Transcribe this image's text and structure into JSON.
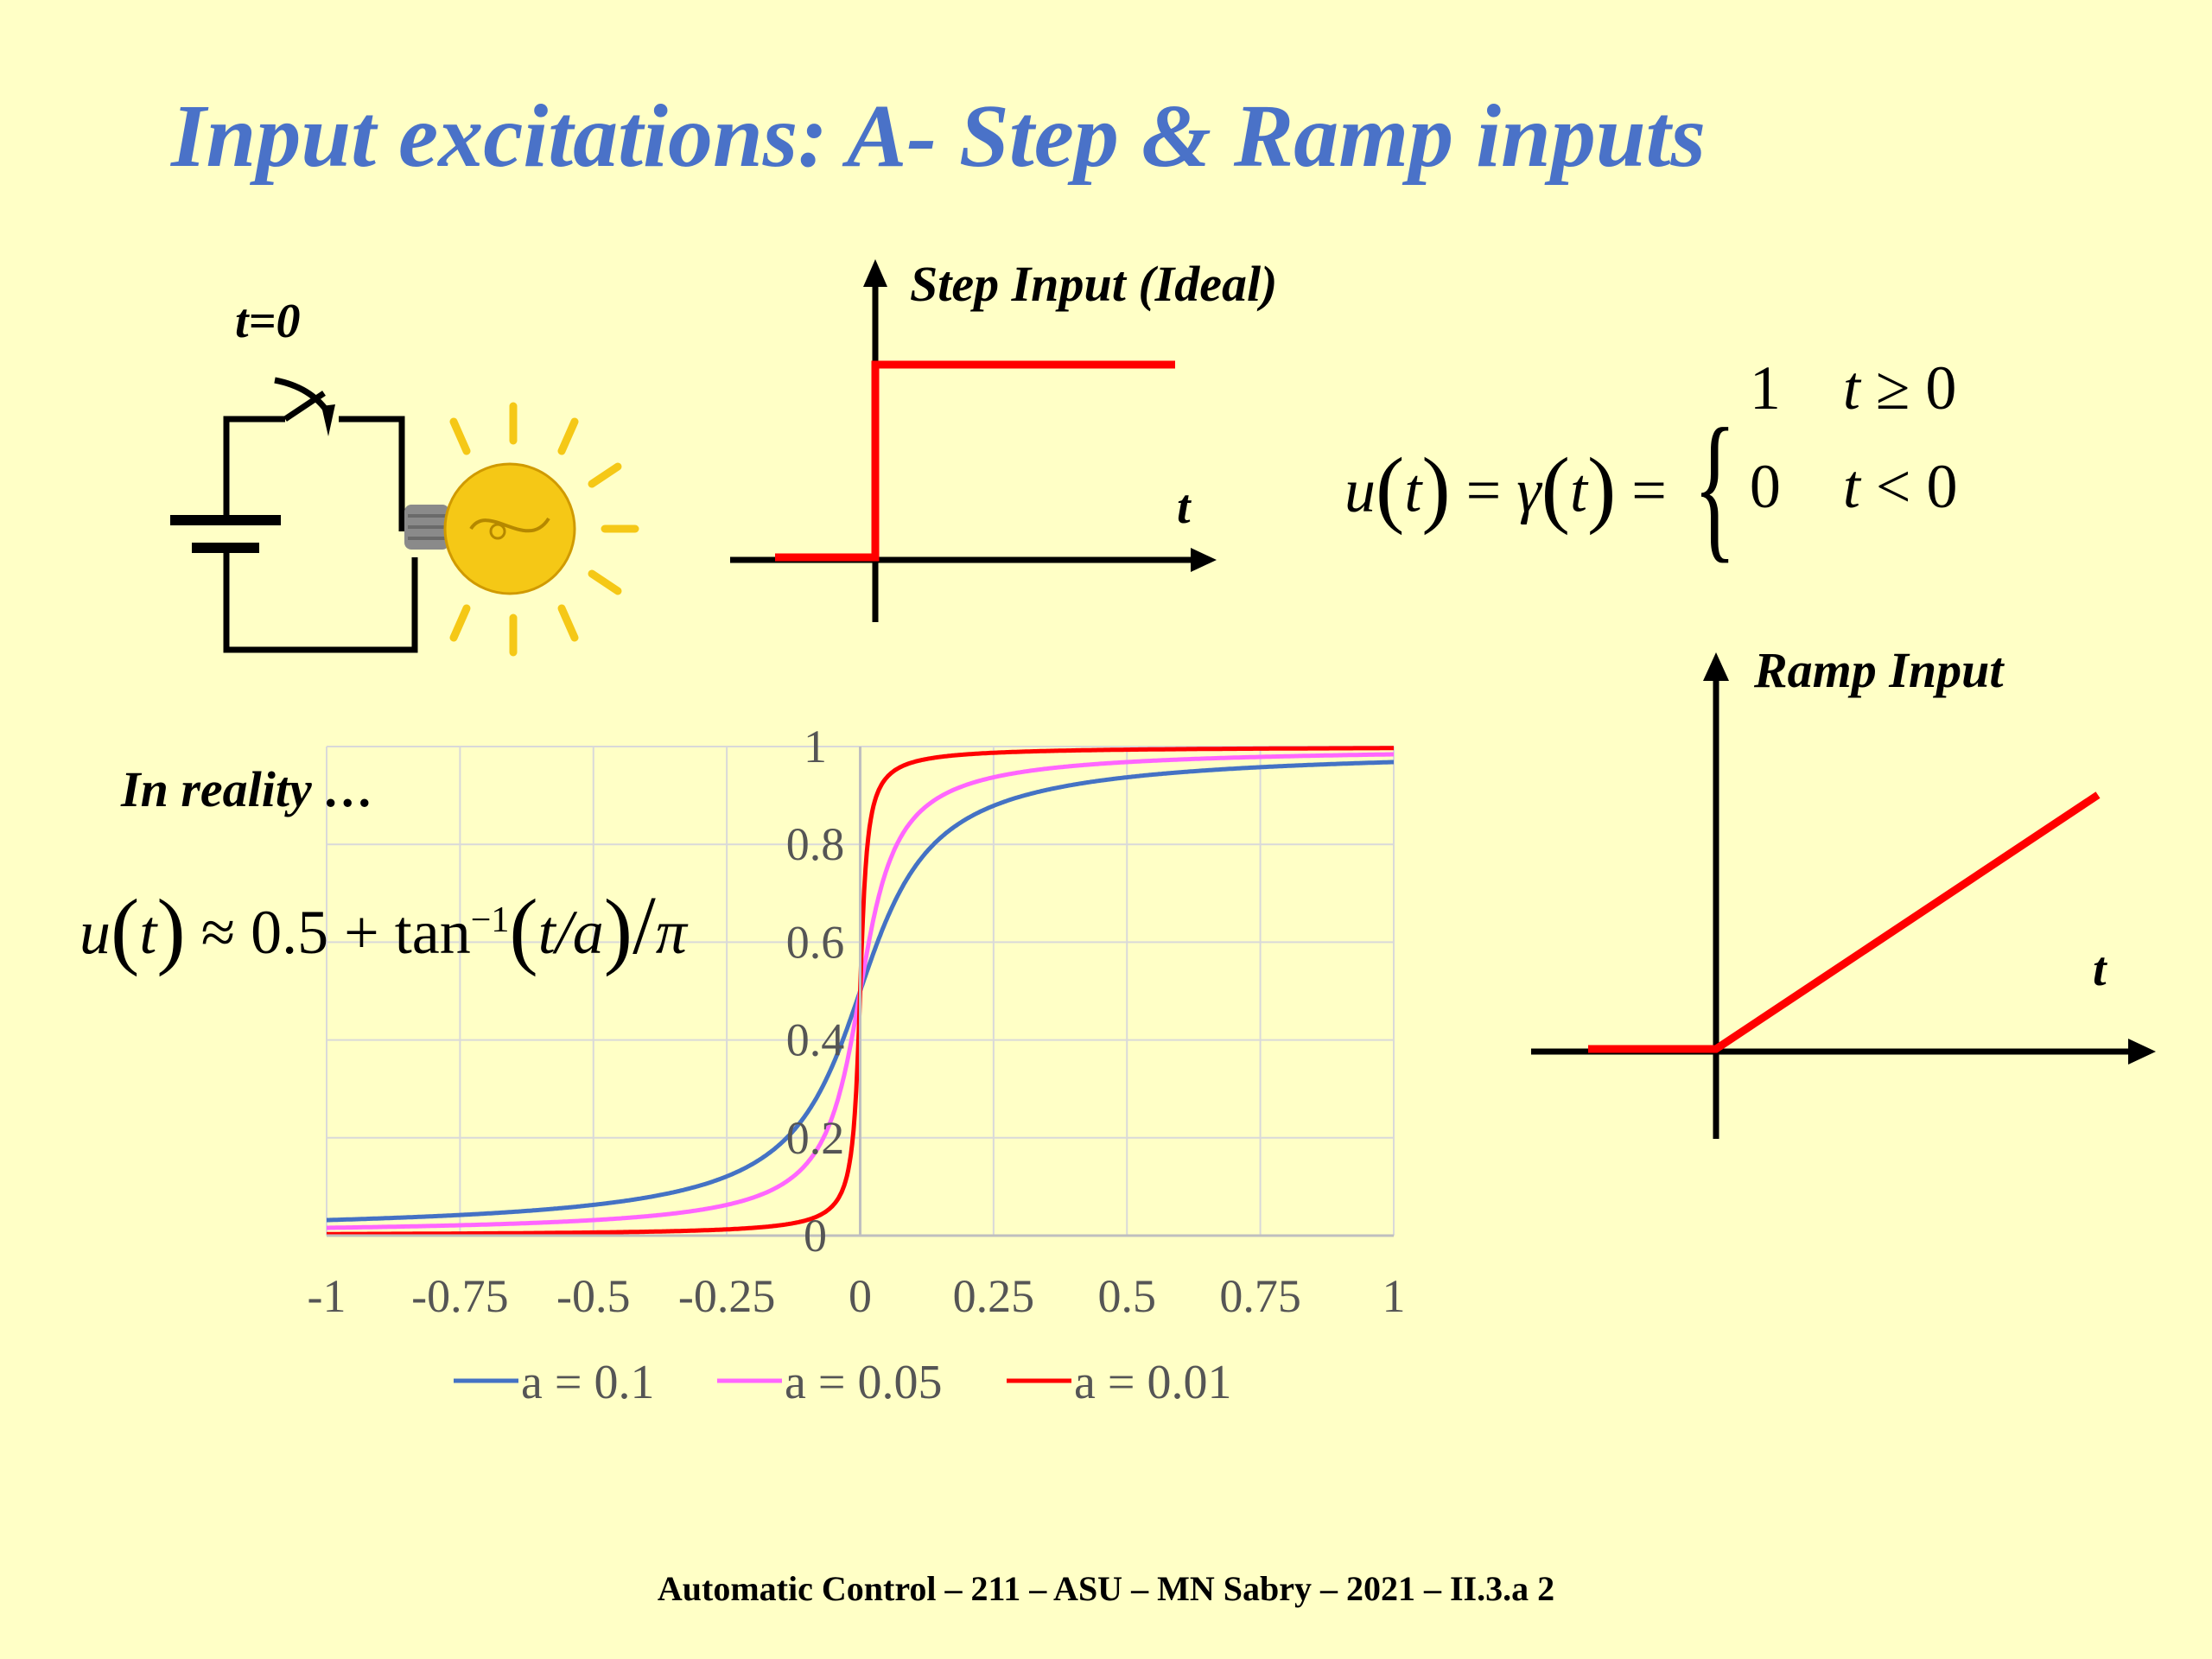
{
  "slide": {
    "title": "Input excitations: A- Step & Ramp inputs",
    "footer": "Automatic Control – 211 – ASU – MN Sabry – 2021 – II.3.a 2"
  },
  "circuit": {
    "switch_label": "t=0"
  },
  "step_diagram": {
    "title": "Step Input (Ideal)",
    "axis_label": "t",
    "color": "#ff0000"
  },
  "step_equation": {
    "lhs_u": "u",
    "lhs_t": "t",
    "gamma": "γ",
    "case1_value": "1",
    "case1_cond_t": "t",
    "case1_cond_rest": "≥ 0",
    "case2_value": "0",
    "case2_cond_t": "t",
    "case2_cond_rest": "< 0"
  },
  "ramp_diagram": {
    "title": "Ramp Input",
    "axis_label": "t",
    "color": "#ff0000"
  },
  "reality": {
    "label": "In reality …",
    "eq_u": "u",
    "eq_t": "t",
    "eq_mid": "≈ 0.5 + tan",
    "eq_sup": "−1",
    "eq_arg": "t/a",
    "eq_pi": "π"
  },
  "chart_data": {
    "type": "line",
    "title": "",
    "xlabel": "",
    "ylabel": "",
    "xlim": [
      -1,
      1
    ],
    "ylim": [
      0,
      1
    ],
    "x_ticks": [
      "-1",
      "-0.75",
      "-0.5",
      "-0.25",
      "0",
      "0.25",
      "0.5",
      "0.75",
      "1"
    ],
    "y_ticks": [
      "0",
      "0.2",
      "0.4",
      "0.6",
      "0.8",
      "1"
    ],
    "grid": true,
    "legend_position": "bottom",
    "function": "u(t) = 0.5 + arctan(t/a)/π",
    "series": [
      {
        "name": "a = 0.1",
        "a": 0.1,
        "color": "#4472c4"
      },
      {
        "name": "a = 0.05",
        "a": 0.05,
        "color": "#ff66ff"
      },
      {
        "name": "a = 0.01",
        "a": 0.01,
        "color": "#ff0000"
      }
    ]
  }
}
